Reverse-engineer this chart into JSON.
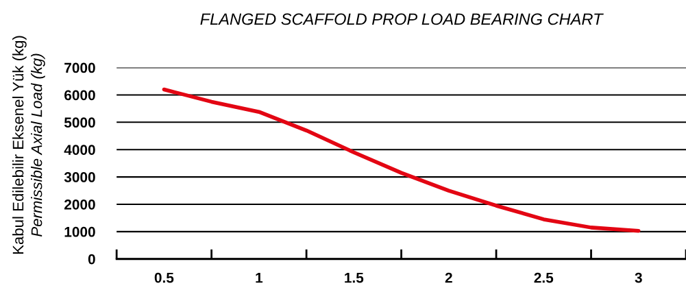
{
  "chart_data": {
    "type": "line",
    "title": "FLANGED SCAFFOLD PROP LOAD BEARING CHART",
    "ylabel": "Kabul Edilebilir Eksenel Yük (kg)\nPermissible Axial Load (kg)",
    "x": [
      0.5,
      0.75,
      1,
      1.25,
      1.5,
      1.75,
      2,
      2.25,
      2.5,
      2.75,
      3
    ],
    "series": [
      {
        "color": "#e30613",
        "values": [
          6200,
          5750,
          5380,
          4700,
          3900,
          3150,
          2500,
          1950,
          1450,
          1150,
          1030
        ]
      }
    ],
    "xlim": [
      0.25,
      3.25
    ],
    "xticks": [
      {
        "value": 0.25,
        "label": null
      },
      0.5,
      {
        "value": 0.75,
        "label": null
      },
      1,
      {
        "value": 1.25,
        "label": null
      },
      1.5,
      {
        "value": 1.75,
        "label": null
      },
      2,
      {
        "value": 2.25,
        "label": null
      },
      2.5,
      {
        "value": 2.75,
        "label": null
      },
      3,
      {
        "value": 3.25,
        "label": null
      }
    ],
    "ylim": [
      0,
      7000
    ],
    "yticks": [
      0,
      1000,
      2000,
      3000,
      4000,
      5000,
      6000,
      7000
    ],
    "grid": "y",
    "marker": "none",
    "line_style": "solid"
  }
}
